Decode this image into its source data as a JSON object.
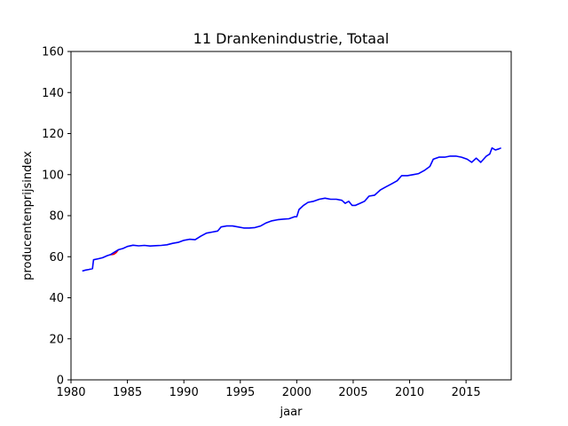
{
  "chart_data": {
    "type": "line",
    "title": "11 Drankenindustrie, Totaal",
    "xlabel": "jaar",
    "ylabel": "producentenprijsindex",
    "xlim": [
      1980,
      2019
    ],
    "ylim": [
      0,
      160
    ],
    "xticks": [
      1980,
      1985,
      1990,
      1995,
      2000,
      2005,
      2010,
      2015
    ],
    "yticks": [
      0,
      20,
      40,
      60,
      80,
      100,
      120,
      140,
      160
    ],
    "grid": false,
    "legend": "none",
    "series": [
      {
        "color": "#ff0000",
        "points": [
          [
            1983.5,
            61.0
          ],
          [
            1983.8,
            61.2
          ],
          [
            1984.0,
            62.0
          ],
          [
            1984.2,
            63.4
          ]
        ]
      },
      {
        "color": "#0000ff",
        "points": [
          [
            1981.0,
            53.0
          ],
          [
            1981.3,
            53.5
          ],
          [
            1981.6,
            53.8
          ],
          [
            1981.9,
            54.2
          ],
          [
            1982.0,
            58.5
          ],
          [
            1982.4,
            59.0
          ],
          [
            1982.8,
            59.5
          ],
          [
            1983.2,
            60.5
          ],
          [
            1983.5,
            61.0
          ],
          [
            1984.2,
            63.4
          ],
          [
            1984.6,
            64.0
          ],
          [
            1985.0,
            65.0
          ],
          [
            1985.5,
            65.6
          ],
          [
            1986.0,
            65.3
          ],
          [
            1986.5,
            65.5
          ],
          [
            1987.0,
            65.2
          ],
          [
            1987.5,
            65.4
          ],
          [
            1988.0,
            65.5
          ],
          [
            1988.5,
            65.8
          ],
          [
            1989.0,
            66.5
          ],
          [
            1989.5,
            67.0
          ],
          [
            1990.0,
            68.0
          ],
          [
            1990.5,
            68.5
          ],
          [
            1991.0,
            68.3
          ],
          [
            1991.5,
            70.0
          ],
          [
            1992.0,
            71.5
          ],
          [
            1992.5,
            72.0
          ],
          [
            1993.0,
            72.5
          ],
          [
            1993.3,
            74.5
          ],
          [
            1993.8,
            75.0
          ],
          [
            1994.3,
            75.0
          ],
          [
            1994.8,
            74.5
          ],
          [
            1995.3,
            74.0
          ],
          [
            1995.8,
            74.0
          ],
          [
            1996.3,
            74.2
          ],
          [
            1996.8,
            75.0
          ],
          [
            1997.3,
            76.5
          ],
          [
            1997.8,
            77.5
          ],
          [
            1998.3,
            78.0
          ],
          [
            1998.8,
            78.3
          ],
          [
            1999.3,
            78.5
          ],
          [
            1999.8,
            79.5
          ],
          [
            2000.0,
            79.5
          ],
          [
            2000.2,
            83.0
          ],
          [
            2000.6,
            85.0
          ],
          [
            2001.0,
            86.5
          ],
          [
            2001.5,
            87.0
          ],
          [
            2002.0,
            88.0
          ],
          [
            2002.5,
            88.5
          ],
          [
            2003.0,
            88.0
          ],
          [
            2003.5,
            88.0
          ],
          [
            2004.0,
            87.5
          ],
          [
            2004.3,
            86.0
          ],
          [
            2004.6,
            87.0
          ],
          [
            2004.9,
            85.0
          ],
          [
            2005.2,
            85.0
          ],
          [
            2005.6,
            86.0
          ],
          [
            2006.0,
            87.0
          ],
          [
            2006.4,
            89.5
          ],
          [
            2006.9,
            90.0
          ],
          [
            2007.4,
            92.5
          ],
          [
            2007.9,
            94.0
          ],
          [
            2008.4,
            95.5
          ],
          [
            2008.9,
            97.0
          ],
          [
            2009.3,
            99.5
          ],
          [
            2009.8,
            99.5
          ],
          [
            2010.3,
            100.0
          ],
          [
            2010.8,
            100.5
          ],
          [
            2011.3,
            102.0
          ],
          [
            2011.8,
            104.0
          ],
          [
            2012.1,
            107.5
          ],
          [
            2012.6,
            108.5
          ],
          [
            2013.1,
            108.5
          ],
          [
            2013.6,
            109.0
          ],
          [
            2014.1,
            109.0
          ],
          [
            2014.6,
            108.5
          ],
          [
            2015.1,
            107.5
          ],
          [
            2015.5,
            106.0
          ],
          [
            2015.9,
            108.0
          ],
          [
            2016.3,
            106.0
          ],
          [
            2016.8,
            109.0
          ],
          [
            2017.1,
            110.0
          ],
          [
            2017.3,
            113.0
          ],
          [
            2017.6,
            112.0
          ],
          [
            2017.9,
            112.5
          ],
          [
            2018.1,
            113.0
          ]
        ]
      }
    ]
  }
}
